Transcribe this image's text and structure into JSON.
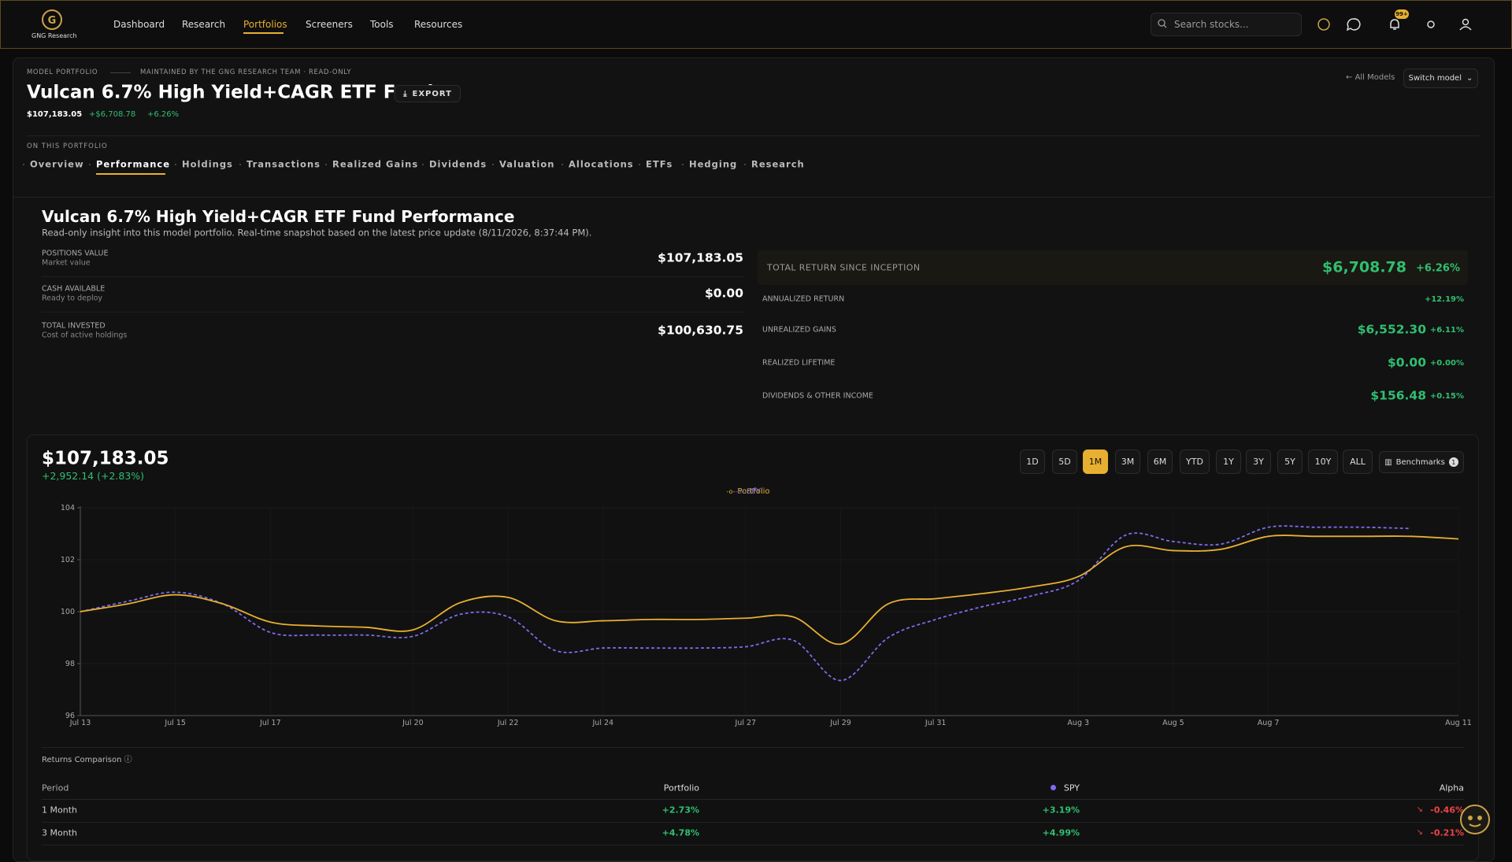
{
  "nav": {
    "brand": "GNG Research",
    "items": [
      "Dashboard",
      "Research",
      "Portfolios",
      "Screeners",
      "Tools",
      "Resources"
    ],
    "active": 2,
    "search_placeholder": "Search stocks...",
    "badge": "99+"
  },
  "header": {
    "eyebrow": "MODEL PORTFOLIO",
    "maintained": "MAINTAINED BY THE GNG RESEARCH TEAM · READ-ONLY",
    "title": "Vulcan 6.7% High Yield+CAGR ETF Fund",
    "export": "EXPORT",
    "value": "$107,183.05",
    "change": "+$6,708.78",
    "change_pct": "+6.26%",
    "all_models": "All Models",
    "switch_model": "Switch model"
  },
  "tabs": {
    "label": "ON THIS PORTFOLIO",
    "items": [
      "Overview",
      "Performance",
      "Holdings",
      "Transactions",
      "Realized Gains",
      "Dividends",
      "Valuation",
      "Allocations",
      "ETFs",
      "Hedging",
      "Research"
    ],
    "active": 1
  },
  "performance": {
    "title": "Vulcan 6.7% High Yield+CAGR ETF Fund Performance",
    "subtitle": "Read-only insight into this model portfolio. Real-time snapshot based on the latest price update (8/11/2026, 8:37:44 PM).",
    "left": [
      {
        "label": "POSITIONS VALUE",
        "sub": "Market value",
        "value": "$107,183.05"
      },
      {
        "label": "CASH AVAILABLE",
        "sub": "Ready to deploy",
        "value": "$0.00"
      },
      {
        "label": "TOTAL INVESTED",
        "sub": "Cost of active holdings",
        "value": "$100,630.75"
      }
    ],
    "total_return": {
      "label": "TOTAL RETURN SINCE INCEPTION",
      "value": "$6,708.78",
      "pct": "+6.26%"
    },
    "right": [
      {
        "label": "ANNUALIZED RETURN",
        "value": null,
        "pct": "+12.19%"
      },
      {
        "label": "UNREALIZED GAINS",
        "value": "$6,552.30",
        "pct": "+6.11%"
      },
      {
        "label": "REALIZED LIFETIME",
        "value": "$0.00",
        "pct": "+0.00%"
      },
      {
        "label": "DIVIDENDS & OTHER INCOME",
        "value": "$156.48",
        "pct": "+0.15%"
      }
    ]
  },
  "chart_panel": {
    "value": "$107,183.05",
    "change": "+2,952.14 (+2.83%)",
    "ranges": [
      "1D",
      "5D",
      "1M",
      "3M",
      "6M",
      "YTD",
      "1Y",
      "3Y",
      "5Y",
      "10Y",
      "ALL"
    ],
    "active_range": 2,
    "benchmarks": "Benchmarks",
    "benchmarks_count": "1"
  },
  "chart_data": {
    "type": "line",
    "categories": [
      "Jul 13",
      null,
      "Jul 15",
      null,
      "Jul 17",
      null,
      null,
      "Jul 20",
      null,
      "Jul 22",
      null,
      "Jul 24",
      null,
      null,
      "Jul 27",
      null,
      "Jul 29",
      null,
      "Jul 31",
      null,
      null,
      "Aug 3",
      null,
      "Aug 5",
      null,
      "Aug 7",
      null,
      null,
      null,
      "Aug 11"
    ],
    "series": [
      {
        "name": "Portfolio",
        "color": "#e8b030",
        "dash": false,
        "values": [
          100.0,
          100.3,
          100.65,
          100.3,
          99.6,
          99.45,
          99.4,
          99.3,
          100.35,
          100.55,
          99.65,
          99.65,
          99.7,
          99.7,
          99.75,
          99.8,
          98.75,
          100.3,
          100.5,
          100.7,
          100.95,
          101.35,
          102.5,
          102.35,
          102.4,
          102.9,
          102.9,
          102.9,
          102.9,
          102.8
        ]
      },
      {
        "name": "SPY",
        "color": "#7c6cf0",
        "dash": true,
        "values": [
          100.0,
          100.4,
          100.75,
          100.3,
          99.2,
          99.1,
          99.1,
          99.05,
          99.9,
          99.8,
          98.5,
          98.6,
          98.6,
          98.6,
          98.65,
          98.9,
          97.35,
          99.0,
          99.7,
          100.2,
          100.6,
          101.2,
          102.95,
          102.7,
          102.6,
          103.25,
          103.25,
          103.25,
          103.2,
          null
        ]
      }
    ],
    "ylim": [
      96,
      104
    ],
    "yticks": [
      96,
      98,
      100,
      102,
      104
    ],
    "grid": true,
    "legend": "top"
  },
  "returns": {
    "title": "Returns Comparison",
    "headers": [
      "Period",
      "Portfolio",
      "SPY",
      "Alpha"
    ],
    "rows": [
      [
        "1 Month",
        "+2.73%",
        "+3.19%",
        "-0.46%"
      ],
      [
        "3 Month",
        "+4.78%",
        "+4.99%",
        "-0.21%"
      ]
    ]
  }
}
